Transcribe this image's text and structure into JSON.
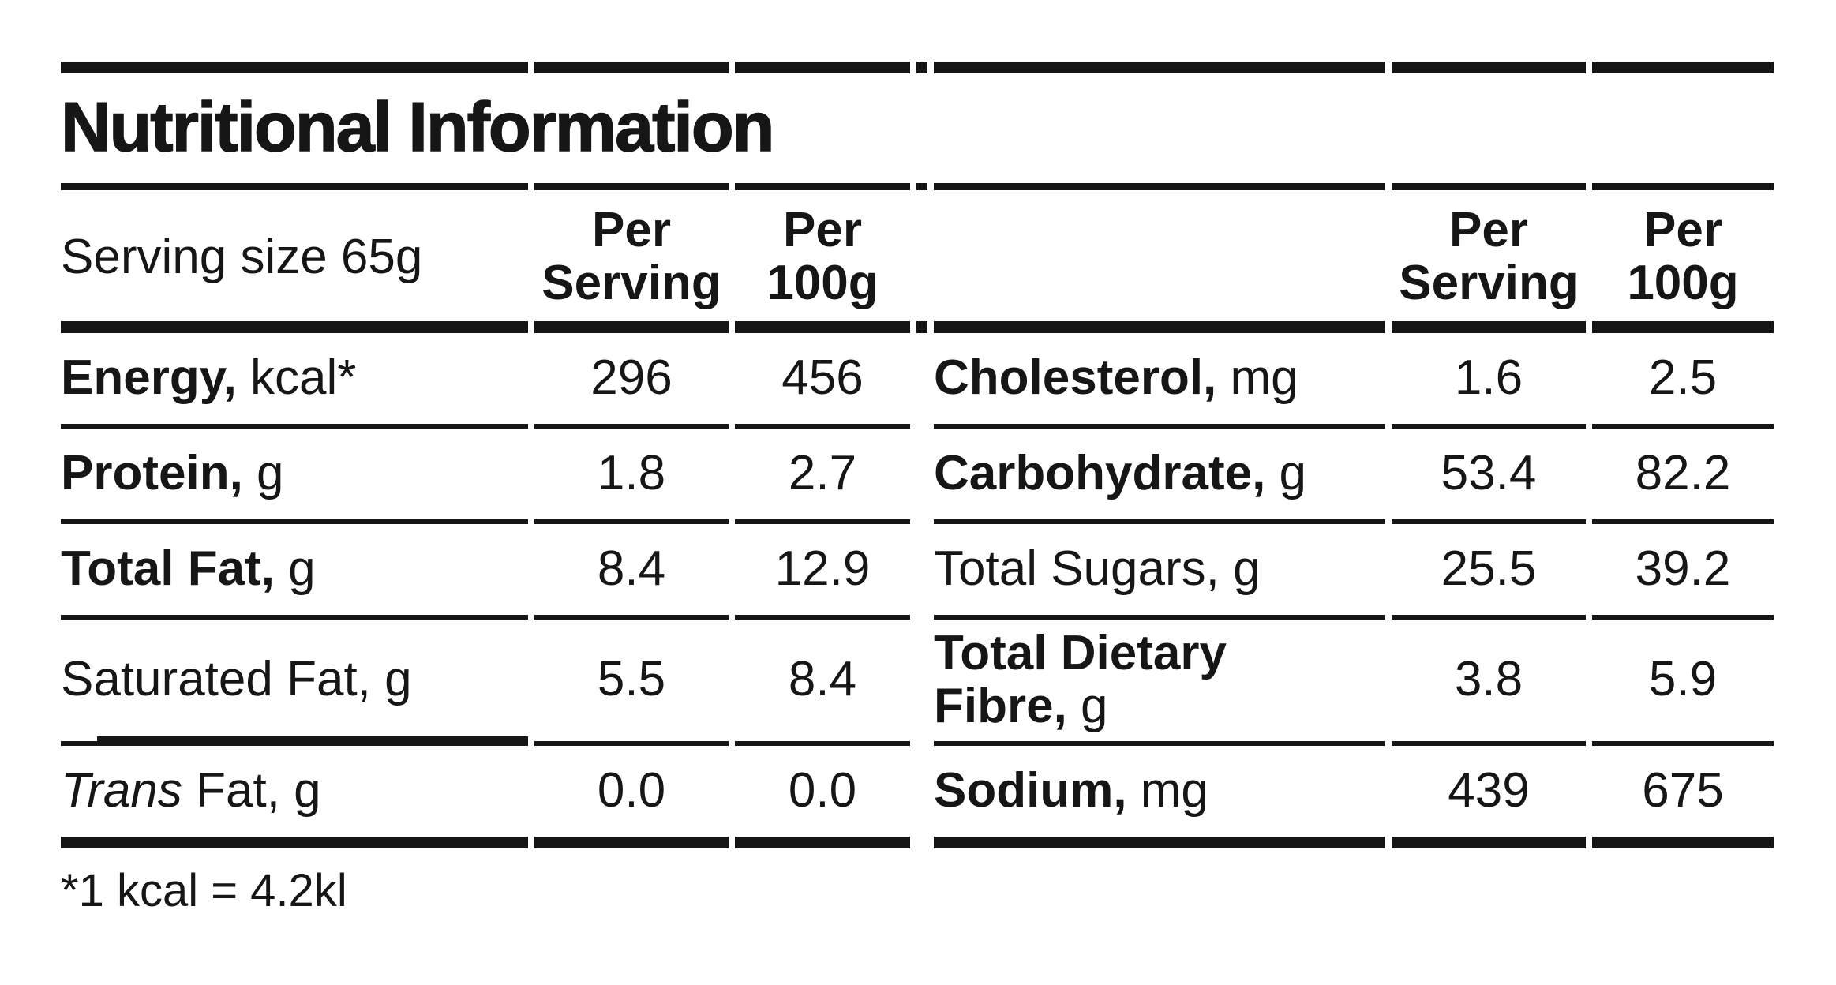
{
  "title": "Nutritional Information",
  "header": {
    "serving_size": "Serving size 65g",
    "per": "Per",
    "serving": "Serving",
    "g100": "100g"
  },
  "left_rows": [
    {
      "bold": "Energy,",
      "rest": " kcal*",
      "per_serving": "296",
      "per_100g": "456"
    },
    {
      "bold": "Protein,",
      "rest": " g",
      "per_serving": "1.8",
      "per_100g": "2.7"
    },
    {
      "bold": "Total Fat,",
      "rest": " g",
      "per_serving": "8.4",
      "per_100g": "12.9"
    },
    {
      "bold": "",
      "rest": "Saturated Fat, g",
      "per_serving": "5.5",
      "per_100g": "8.4"
    },
    {
      "bold": "",
      "italic": "Trans",
      "rest": " Fat, g",
      "per_serving": "0.0",
      "per_100g": "0.0"
    }
  ],
  "right_rows": [
    {
      "bold": "Cholesterol,",
      "rest": " mg",
      "per_serving": "1.6",
      "per_100g": "2.5"
    },
    {
      "bold": "Carbohydrate,",
      "rest": " g",
      "per_serving": "53.4",
      "per_100g": "82.2"
    },
    {
      "bold": "",
      "rest": "Total Sugars, g",
      "per_serving": "25.5",
      "per_100g": "39.2"
    },
    {
      "bold": "Total Dietary Fibre,",
      "rest": " g",
      "per_serving": "3.8",
      "per_100g": "5.9"
    },
    {
      "bold": "Sodium,",
      "rest": " mg",
      "per_serving": "439",
      "per_100g": "675"
    }
  ],
  "footnote": "*1 kcal = 4.2kl",
  "colors": {
    "ink": "#161616",
    "background": "#ffffff"
  }
}
